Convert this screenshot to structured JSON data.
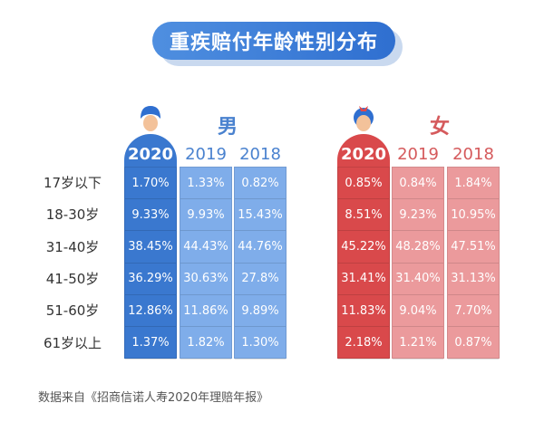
{
  "title": "重疾赔付年龄性别分布",
  "source": "数据来自《招商信诺人寿2020年理赔年报》",
  "colors": {
    "male_dark": "#3a78cf",
    "male_light": "#7fadea",
    "female_dark": "#d9494b",
    "female_light": "#eb9a9c"
  },
  "icons": {
    "male": "boy-avatar-icon",
    "female": "girl-avatar-icon"
  },
  "chart_data": {
    "type": "table",
    "title": "重疾赔付年龄性别分布",
    "rows": [
      "17岁以下",
      "18-30岁",
      "31-40岁",
      "41-50岁",
      "51-60岁",
      "61岁以上"
    ],
    "groups": [
      {
        "name": "男",
        "years": [
          "2020",
          "2019",
          "2018"
        ],
        "values": [
          [
            "1.70%",
            "1.33%",
            "0.82%"
          ],
          [
            "9.33%",
            "9.93%",
            "15.43%"
          ],
          [
            "38.45%",
            "44.43%",
            "44.76%"
          ],
          [
            "36.29%",
            "30.63%",
            "27.8%"
          ],
          [
            "12.86%",
            "11.86%",
            "9.89%"
          ],
          [
            "1.37%",
            "1.82%",
            "1.30%"
          ]
        ]
      },
      {
        "name": "女",
        "years": [
          "2020",
          "2019",
          "2018"
        ],
        "values": [
          [
            "0.85%",
            "0.84%",
            "1.84%"
          ],
          [
            "8.51%",
            "9.23%",
            "10.95%"
          ],
          [
            "45.22%",
            "48.28%",
            "47.51%"
          ],
          [
            "31.41%",
            "31.40%",
            "31.13%"
          ],
          [
            "11.83%",
            "9.04%",
            "7.70%"
          ],
          [
            "2.18%",
            "1.21%",
            "0.87%"
          ]
        ]
      }
    ]
  }
}
